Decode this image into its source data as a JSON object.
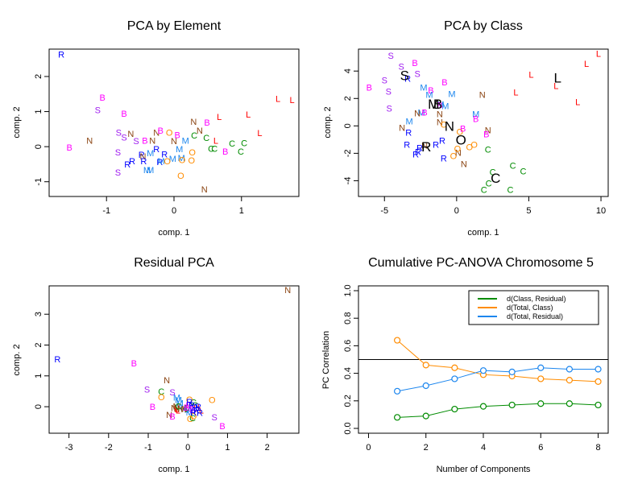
{
  "colors": {
    "B": "#ff00ff",
    "S": "#a020f0",
    "N": "#8b4513",
    "R": "#0000ff",
    "M": "#1c86ee",
    "O": "#ff8c00",
    "C": "#008b00",
    "L": "#ff0000",
    "centroid": "#000000",
    "green": "#008b00",
    "orange": "#ff8c00",
    "blue": "#1c86ee"
  },
  "chart_data": [
    {
      "type": "scatter",
      "title": "PCA by Element",
      "xlabel": "comp. 1",
      "ylabel": "comp. 2",
      "xlim": [
        -1.85,
        1.85
      ],
      "ylim": [
        -1.42,
        2.78
      ],
      "xticks": [
        -1,
        0,
        1
      ],
      "yticks": [
        -1,
        0,
        1,
        2
      ],
      "points": [
        {
          "label": "R",
          "x": -1.67,
          "y": 2.63
        },
        {
          "label": "B",
          "x": -1.06,
          "y": 1.4
        },
        {
          "label": "S",
          "x": -1.13,
          "y": 1.05
        },
        {
          "label": "B",
          "x": -0.74,
          "y": 0.94
        },
        {
          "label": "B",
          "x": -1.55,
          "y": -0.02
        },
        {
          "label": "N",
          "x": -1.25,
          "y": 0.18
        },
        {
          "label": "S",
          "x": -0.82,
          "y": 0.41
        },
        {
          "label": "S",
          "x": -0.74,
          "y": 0.27
        },
        {
          "label": "N",
          "x": -0.64,
          "y": 0.37
        },
        {
          "label": "S",
          "x": -0.56,
          "y": 0.16
        },
        {
          "label": "B",
          "x": -0.43,
          "y": 0.18
        },
        {
          "label": "N",
          "x": -0.32,
          "y": 0.18
        },
        {
          "label": "N",
          "x": -0.26,
          "y": 0.41
        },
        {
          "label": "B",
          "x": -0.2,
          "y": 0.46
        },
        {
          "label": "S",
          "x": -0.83,
          "y": -0.16
        },
        {
          "label": "S",
          "x": -0.83,
          "y": -0.73
        },
        {
          "label": "R",
          "x": -0.69,
          "y": -0.5
        },
        {
          "label": "R",
          "x": -0.62,
          "y": -0.41
        },
        {
          "label": "R",
          "x": -0.48,
          "y": -0.23
        },
        {
          "label": "N",
          "x": -0.46,
          "y": -0.27
        },
        {
          "label": "R",
          "x": -0.45,
          "y": -0.41
        },
        {
          "label": "M",
          "x": -0.35,
          "y": -0.18
        },
        {
          "label": "R",
          "x": -0.26,
          "y": -0.07
        },
        {
          "label": "R",
          "x": -0.14,
          "y": -0.21
        },
        {
          "label": "R",
          "x": -0.21,
          "y": -0.43
        },
        {
          "label": "M",
          "x": -0.19,
          "y": -0.41
        },
        {
          "label": "M",
          "x": -0.4,
          "y": -0.66
        },
        {
          "label": "M",
          "x": -0.35,
          "y": -0.66
        },
        {
          "label": "O",
          "x": -0.07,
          "y": 0.41
        },
        {
          "label": "B",
          "x": 0.05,
          "y": 0.34
        },
        {
          "label": "N",
          "x": 0.0,
          "y": 0.16
        },
        {
          "label": "M",
          "x": 0.17,
          "y": 0.18
        },
        {
          "label": "M",
          "x": 0.08,
          "y": -0.07
        },
        {
          "label": "M",
          "x": 0.11,
          "y": -0.32
        },
        {
          "label": "M",
          "x": -0.02,
          "y": -0.34
        },
        {
          "label": "O",
          "x": -0.1,
          "y": -0.41
        },
        {
          "label": "O",
          "x": 0.12,
          "y": -0.37
        },
        {
          "label": "O",
          "x": 0.27,
          "y": -0.16
        },
        {
          "label": "O",
          "x": 0.26,
          "y": -0.39
        },
        {
          "label": "O",
          "x": 0.1,
          "y": -0.82
        },
        {
          "label": "N",
          "x": 0.29,
          "y": 0.71
        },
        {
          "label": "N",
          "x": 0.38,
          "y": 0.46
        },
        {
          "label": "B",
          "x": 0.49,
          "y": 0.69
        },
        {
          "label": "C",
          "x": 0.3,
          "y": 0.32
        },
        {
          "label": "C",
          "x": 0.48,
          "y": 0.25
        },
        {
          "label": "C",
          "x": 0.55,
          "y": -0.05
        },
        {
          "label": "C",
          "x": 0.6,
          "y": -0.05
        },
        {
          "label": "C",
          "x": 0.86,
          "y": 0.09
        },
        {
          "label": "C",
          "x": 1.04,
          "y": 0.11
        },
        {
          "label": "C",
          "x": 0.99,
          "y": -0.14
        },
        {
          "label": "B",
          "x": 0.76,
          "y": -0.14
        },
        {
          "label": "L",
          "x": 0.67,
          "y": 0.85
        },
        {
          "label": "L",
          "x": 0.62,
          "y": 0.18
        },
        {
          "label": "L",
          "x": 1.1,
          "y": 0.92
        },
        {
          "label": "L",
          "x": 1.27,
          "y": 0.39
        },
        {
          "label": "L",
          "x": 1.54,
          "y": 1.37
        },
        {
          "label": "L",
          "x": 1.75,
          "y": 1.33
        },
        {
          "label": "N",
          "x": 0.45,
          "y": -1.21
        }
      ],
      "centroids": []
    },
    {
      "type": "scatter",
      "title": "PCA by Class",
      "xlabel": "comp. 1",
      "ylabel": "comp. 2",
      "xlim": [
        -6.8,
        10.5
      ],
      "ylim": [
        -5.15,
        5.6
      ],
      "xticks": [
        -5,
        0,
        5,
        10
      ],
      "yticks": [
        -4,
        -2,
        0,
        2,
        4
      ],
      "points": [
        {
          "label": "S",
          "x": -4.56,
          "y": 5.12
        },
        {
          "label": "S",
          "x": -3.83,
          "y": 4.35
        },
        {
          "label": "B",
          "x": -2.89,
          "y": 4.59
        },
        {
          "label": "S",
          "x": -2.72,
          "y": 3.82
        },
        {
          "label": "S",
          "x": -5.0,
          "y": 3.35
        },
        {
          "label": "B",
          "x": -6.06,
          "y": 2.82
        },
        {
          "label": "S",
          "x": -4.72,
          "y": 2.53
        },
        {
          "label": "S",
          "x": -4.67,
          "y": 1.29
        },
        {
          "label": "R",
          "x": -3.39,
          "y": 3.47
        },
        {
          "label": "M",
          "x": -2.28,
          "y": 2.82
        },
        {
          "label": "B",
          "x": -1.78,
          "y": 2.59
        },
        {
          "label": "M",
          "x": -1.89,
          "y": 2.29
        },
        {
          "label": "B",
          "x": -0.83,
          "y": 3.18
        },
        {
          "label": "M",
          "x": -0.33,
          "y": 2.35
        },
        {
          "label": "M",
          "x": -0.78,
          "y": 1.47
        },
        {
          "label": "M",
          "x": -1.11,
          "y": 1.59
        },
        {
          "label": "B",
          "x": -1.17,
          "y": 1.53
        },
        {
          "label": "M",
          "x": -2.44,
          "y": 1.0
        },
        {
          "label": "B",
          "x": -2.22,
          "y": 1.0
        },
        {
          "label": "N",
          "x": -2.72,
          "y": 0.94
        },
        {
          "label": "N",
          "x": -1.17,
          "y": 0.88
        },
        {
          "label": "M",
          "x": -3.28,
          "y": 0.35
        },
        {
          "label": "N",
          "x": -3.78,
          "y": -0.12
        },
        {
          "label": "R",
          "x": -3.33,
          "y": -0.47
        },
        {
          "label": "N",
          "x": -1.17,
          "y": 0.29
        },
        {
          "label": "O",
          "x": -0.89,
          "y": 0.12
        },
        {
          "label": "R",
          "x": -3.44,
          "y": -1.35
        },
        {
          "label": "R",
          "x": -2.56,
          "y": -1.59
        },
        {
          "label": "R",
          "x": -2.83,
          "y": -2.06
        },
        {
          "label": "R",
          "x": -2.67,
          "y": -1.88
        },
        {
          "label": "N",
          "x": -2.22,
          "y": -1.41
        },
        {
          "label": "R",
          "x": -1.44,
          "y": -1.35
        },
        {
          "label": "R",
          "x": -1.0,
          "y": -1.06
        },
        {
          "label": "R",
          "x": -0.89,
          "y": -2.35
        },
        {
          "label": "O",
          "x": -0.22,
          "y": -2.18
        },
        {
          "label": "N",
          "x": 0.11,
          "y": -1.94
        },
        {
          "label": "O",
          "x": 0.06,
          "y": -1.65
        },
        {
          "label": "O",
          "x": 0.89,
          "y": -1.53
        },
        {
          "label": "O",
          "x": 1.22,
          "y": -1.35
        },
        {
          "label": "N",
          "x": 0.5,
          "y": -2.76
        },
        {
          "label": "O",
          "x": 0.22,
          "y": -0.41
        },
        {
          "label": "B",
          "x": 0.44,
          "y": -0.18
        },
        {
          "label": "N",
          "x": 1.78,
          "y": 2.29
        },
        {
          "label": "M",
          "x": 1.33,
          "y": 0.88
        },
        {
          "label": "B",
          "x": 1.33,
          "y": 0.53
        },
        {
          "label": "N",
          "x": 2.17,
          "y": -0.29
        },
        {
          "label": "B",
          "x": 2.06,
          "y": -0.59
        },
        {
          "label": "C",
          "x": 2.17,
          "y": -1.71
        },
        {
          "label": "C",
          "x": 2.5,
          "y": -3.35
        },
        {
          "label": "C",
          "x": 2.22,
          "y": -4.18
        },
        {
          "label": "C",
          "x": 1.89,
          "y": -4.65
        },
        {
          "label": "C",
          "x": 3.89,
          "y": -2.88
        },
        {
          "label": "C",
          "x": 4.61,
          "y": -3.29
        },
        {
          "label": "C",
          "x": 3.72,
          "y": -4.65
        },
        {
          "label": "L",
          "x": 4.11,
          "y": 2.47
        },
        {
          "label": "L",
          "x": 5.17,
          "y": 3.76
        },
        {
          "label": "L",
          "x": 6.89,
          "y": 2.94
        },
        {
          "label": "L",
          "x": 8.39,
          "y": 1.76
        },
        {
          "label": "L",
          "x": 9.0,
          "y": 4.53
        },
        {
          "label": "L",
          "x": 9.83,
          "y": 5.29
        }
      ],
      "centroids": [
        {
          "label": "S",
          "x": -3.6,
          "y": 3.7
        },
        {
          "label": "M",
          "x": -1.6,
          "y": 1.6
        },
        {
          "label": "B",
          "x": -1.3,
          "y": 1.6
        },
        {
          "label": "N",
          "x": -0.5,
          "y": 0.0
        },
        {
          "label": "R",
          "x": -2.1,
          "y": -1.5
        },
        {
          "label": "O",
          "x": 0.3,
          "y": -1.0
        },
        {
          "label": "C",
          "x": 2.7,
          "y": -3.8
        },
        {
          "label": "L",
          "x": 7.0,
          "y": 3.5
        }
      ]
    },
    {
      "type": "scatter",
      "title": "Residual PCA",
      "xlabel": "comp. 1",
      "ylabel": "comp. 2",
      "xlim": [
        -3.5,
        2.8
      ],
      "ylim": [
        -0.86,
        3.92
      ],
      "xticks": [
        -3,
        -2,
        -1,
        0,
        1,
        2
      ],
      "yticks": [
        0,
        1,
        2,
        3
      ],
      "points": [
        {
          "label": "N",
          "x": 2.52,
          "y": 3.79
        },
        {
          "label": "R",
          "x": -3.29,
          "y": 1.54
        },
        {
          "label": "B",
          "x": -1.36,
          "y": 1.41
        },
        {
          "label": "N",
          "x": -0.53,
          "y": 0.86
        },
        {
          "label": "S",
          "x": -1.03,
          "y": 0.57
        },
        {
          "label": "C",
          "x": -0.67,
          "y": 0.5
        },
        {
          "label": "S",
          "x": -0.39,
          "y": 0.47
        },
        {
          "label": "O",
          "x": -0.67,
          "y": 0.31
        },
        {
          "label": "B",
          "x": -0.89,
          "y": 0.0
        },
        {
          "label": "O",
          "x": 0.61,
          "y": 0.23
        },
        {
          "label": "S",
          "x": 0.67,
          "y": -0.34
        },
        {
          "label": "B",
          "x": 0.87,
          "y": -0.63
        },
        {
          "label": "N",
          "x": -0.47,
          "y": -0.26
        },
        {
          "label": "B",
          "x": -0.39,
          "y": -0.31
        },
        {
          "label": "O",
          "x": 0.06,
          "y": -0.39
        },
        {
          "label": "C",
          "x": 0.12,
          "y": -0.37
        },
        {
          "label": "M",
          "x": -0.28,
          "y": 0.3
        },
        {
          "label": "M",
          "x": -0.24,
          "y": 0.22
        },
        {
          "label": "M",
          "x": -0.2,
          "y": 0.12
        },
        {
          "label": "M",
          "x": -0.1,
          "y": -0.02
        },
        {
          "label": "M",
          "x": 0.0,
          "y": -0.1
        },
        {
          "label": "M",
          "x": 0.04,
          "y": -0.18
        },
        {
          "label": "N",
          "x": -0.3,
          "y": 0.02
        },
        {
          "label": "N",
          "x": -0.28,
          "y": -0.05
        },
        {
          "label": "N",
          "x": -0.18,
          "y": -0.06
        },
        {
          "label": "N",
          "x": -0.1,
          "y": -0.08
        },
        {
          "label": "N",
          "x": -0.35,
          "y": -0.04
        },
        {
          "label": "L",
          "x": -0.28,
          "y": -0.08
        },
        {
          "label": "L",
          "x": -0.25,
          "y": -0.12
        },
        {
          "label": "L",
          "x": 0.2,
          "y": -0.05
        },
        {
          "label": "L",
          "x": 0.34,
          "y": -0.12
        },
        {
          "label": "L",
          "x": 0.3,
          "y": -0.02
        },
        {
          "label": "C",
          "x": -0.24,
          "y": 0.02
        },
        {
          "label": "C",
          "x": 0.14,
          "y": 0.15
        },
        {
          "label": "C",
          "x": -0.04,
          "y": -0.04
        },
        {
          "label": "C",
          "x": 0.18,
          "y": 0.06
        },
        {
          "label": "O",
          "x": 0.04,
          "y": 0.24
        },
        {
          "label": "O",
          "x": 0.14,
          "y": -0.3
        },
        {
          "label": "B",
          "x": 0.02,
          "y": 0.05
        },
        {
          "label": "B",
          "x": 0.12,
          "y": -0.1
        },
        {
          "label": "B",
          "x": -0.04,
          "y": -0.02
        },
        {
          "label": "R",
          "x": 0.04,
          "y": 0.16
        },
        {
          "label": "R",
          "x": 0.1,
          "y": 0.06
        },
        {
          "label": "R",
          "x": 0.18,
          "y": -0.02
        },
        {
          "label": "R",
          "x": 0.26,
          "y": 0.0
        },
        {
          "label": "R",
          "x": 0.14,
          "y": -0.18
        },
        {
          "label": "R",
          "x": 0.22,
          "y": -0.12
        },
        {
          "label": "R",
          "x": 0.3,
          "y": -0.2
        },
        {
          "label": "S",
          "x": 0.08,
          "y": -0.06
        }
      ],
      "centroids": []
    },
    {
      "type": "line",
      "title": "Cumulative PC-ANOVA Chromosome 5",
      "xlabel": "Number of Components",
      "ylabel": "PC Correlation",
      "xlim": [
        -0.35,
        8.35
      ],
      "ylim": [
        -0.035,
        1.035
      ],
      "xticks": [
        0,
        2,
        4,
        6,
        8
      ],
      "yticks": [
        "0.0",
        "0.2",
        "0.4",
        "0.6",
        "0.8",
        "1.0"
      ],
      "hline": 0.5,
      "legend_position": "top-right",
      "x": [
        1,
        2,
        3,
        4,
        5,
        6,
        7,
        8
      ],
      "series": [
        {
          "name": "d(Class, Residual)",
          "color_key": "green",
          "values": [
            0.08,
            0.09,
            0.14,
            0.16,
            0.17,
            0.18,
            0.18,
            0.17
          ]
        },
        {
          "name": "d(Total, Class)",
          "color_key": "orange",
          "values": [
            0.64,
            0.46,
            0.44,
            0.39,
            0.38,
            0.36,
            0.35,
            0.34
          ]
        },
        {
          "name": "d(Total, Residual)",
          "color_key": "blue",
          "values": [
            0.27,
            0.31,
            0.36,
            0.42,
            0.41,
            0.44,
            0.43,
            0.43
          ]
        }
      ]
    }
  ]
}
